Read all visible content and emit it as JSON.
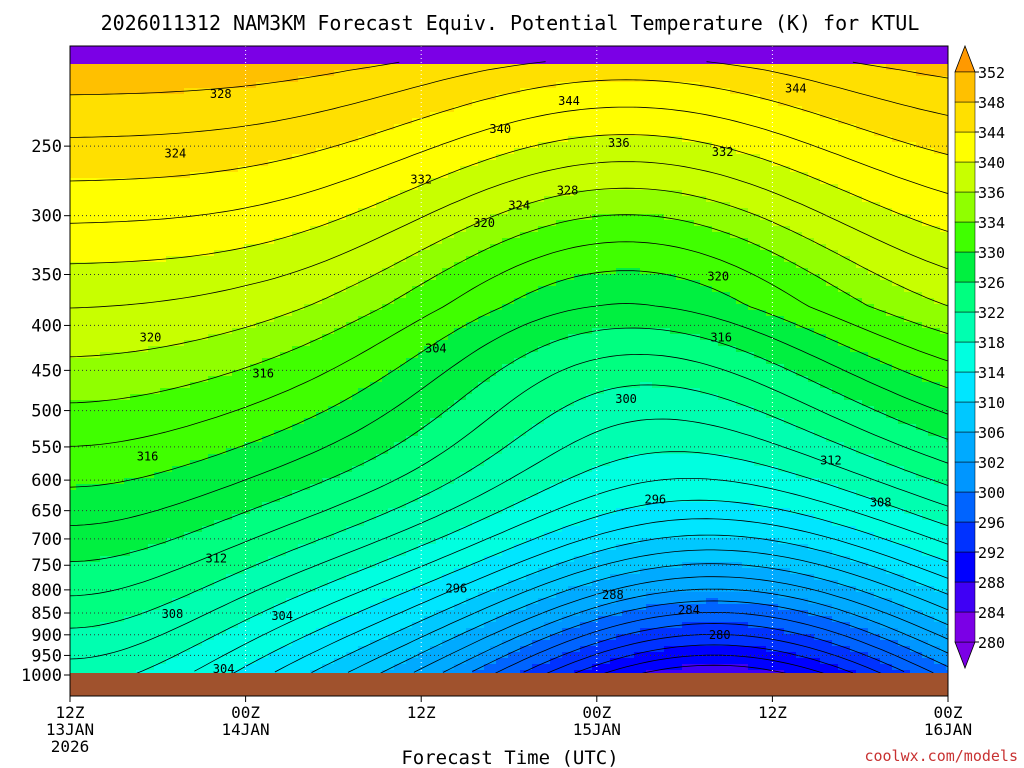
{
  "chart_data": {
    "type": "heatmap",
    "title": "2026011312 NAM3KM Forecast Equiv. Potential Temperature (K) for KTUL",
    "xlabel": "Forecast Time (UTC)",
    "ylabel": "",
    "credit": "coolwx.com/models",
    "x_ticks": [
      {
        "hour": 0,
        "line1": "12Z",
        "line2": "13JAN",
        "line3": "2026"
      },
      {
        "hour": 12,
        "line1": "00Z",
        "line2": "14JAN",
        "line3": ""
      },
      {
        "hour": 24,
        "line1": "12Z",
        "line2": "",
        "line3": ""
      },
      {
        "hour": 36,
        "line1": "00Z",
        "line2": "15JAN",
        "line3": ""
      },
      {
        "hour": 48,
        "line1": "12Z",
        "line2": "",
        "line3": ""
      },
      {
        "hour": 60,
        "line1": "00Z",
        "line2": "16JAN",
        "line3": ""
      }
    ],
    "xlim": [
      0,
      60
    ],
    "y_ticks": [
      250,
      300,
      350,
      400,
      450,
      500,
      550,
      600,
      650,
      700,
      750,
      800,
      850,
      900,
      950,
      1000
    ],
    "ylim": [
      200,
      1000
    ],
    "y_scale": "log",
    "colorbar": {
      "levels": [
        280,
        284,
        288,
        292,
        296,
        300,
        302,
        306,
        310,
        314,
        318,
        322,
        326,
        330,
        334,
        336,
        340,
        344,
        348,
        352
      ],
      "colors": [
        "#7b00e6",
        "#3f00f5",
        "#0000ff",
        "#0032ff",
        "#0064ff",
        "#0096ff",
        "#00aaff",
        "#00c8ff",
        "#00e6ff",
        "#00ffe0",
        "#00ffb0",
        "#00ff80",
        "#00f040",
        "#40ff00",
        "#90ff00",
        "#c8ff00",
        "#ffff00",
        "#ffe000",
        "#ffc000",
        "#ff9900"
      ]
    },
    "contour_labels": [
      {
        "text": "328",
        "hour": 10.3,
        "p": 218
      },
      {
        "text": "344",
        "hour": 34.1,
        "p": 222
      },
      {
        "text": "344",
        "hour": 49.6,
        "p": 215
      },
      {
        "text": "340",
        "hour": 29.4,
        "p": 239
      },
      {
        "text": "336",
        "hour": 37.5,
        "p": 248
      },
      {
        "text": "332",
        "hour": 44.6,
        "p": 254
      },
      {
        "text": "324",
        "hour": 7.2,
        "p": 255
      },
      {
        "text": "332",
        "hour": 24.0,
        "p": 273
      },
      {
        "text": "328",
        "hour": 34.0,
        "p": 281
      },
      {
        "text": "324",
        "hour": 30.7,
        "p": 292
      },
      {
        "text": "320",
        "hour": 28.3,
        "p": 306
      },
      {
        "text": "320",
        "hour": 44.3,
        "p": 352
      },
      {
        "text": "316",
        "hour": 44.5,
        "p": 413
      },
      {
        "text": "320",
        "hour": 5.5,
        "p": 413
      },
      {
        "text": "304",
        "hour": 25.0,
        "p": 425
      },
      {
        "text": "316",
        "hour": 13.2,
        "p": 454
      },
      {
        "text": "300",
        "hour": 38.0,
        "p": 485
      },
      {
        "text": "316",
        "hour": 5.3,
        "p": 564
      },
      {
        "text": "312",
        "hour": 52.0,
        "p": 570
      },
      {
        "text": "296",
        "hour": 40.0,
        "p": 631
      },
      {
        "text": "308",
        "hour": 55.4,
        "p": 636
      },
      {
        "text": "312",
        "hour": 10.0,
        "p": 737
      },
      {
        "text": "296",
        "hour": 26.4,
        "p": 797
      },
      {
        "text": "288",
        "hour": 37.1,
        "p": 811
      },
      {
        "text": "284",
        "hour": 42.3,
        "p": 843
      },
      {
        "text": "308",
        "hour": 7.0,
        "p": 852
      },
      {
        "text": "304",
        "hour": 14.5,
        "p": 857
      },
      {
        "text": "280",
        "hour": 44.4,
        "p": 900
      },
      {
        "text": "304",
        "hour": 10.5,
        "p": 985
      }
    ]
  }
}
